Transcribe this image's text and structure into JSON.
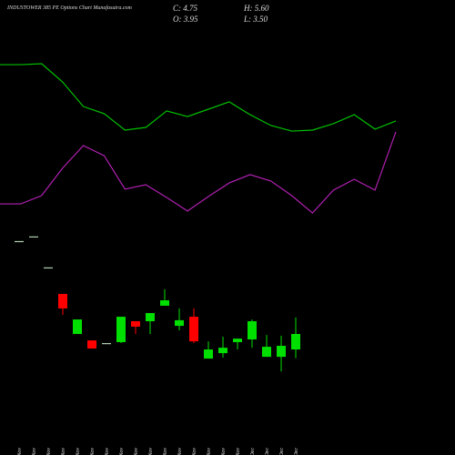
{
  "chart_data": {
    "type": "candlestick",
    "title": "INDUSTOWER 385 PE Options Chart Munafasutra.com",
    "ohlc_labels": [
      "C: 4.75",
      "H: 5.60",
      "O: 3.95",
      "L: 3.50"
    ],
    "categories": [
      "06 Nov",
      "07 Nov",
      "10 Nov",
      "12 Nov",
      "13 Nov",
      "14 Nov",
      "17 Nov",
      "18 Nov",
      "19 Nov",
      "20 Nov",
      "21 Nov",
      "24 Nov",
      "25 Nov",
      "26 Nov",
      "27 Nov",
      "28 Nov",
      "01 Dec",
      "02 Dec",
      "03 Dec",
      "04 Dec"
    ],
    "open": [
      9.55,
      9.79,
      8.19,
      6.82,
      4.75,
      4.42,
      4.28,
      4.33,
      5.41,
      5.41,
      6.21,
      5.17,
      5.64,
      3.48,
      3.76,
      4.33,
      4.47,
      3.57,
      3.57,
      3.95
    ],
    "high": [
      9.55,
      9.79,
      8.19,
      6.82,
      5.5,
      4.42,
      4.28,
      5.64,
      5.41,
      5.83,
      7.06,
      6.07,
      6.07,
      4.37,
      4.61,
      4.51,
      5.5,
      4.7,
      4.66,
      5.6
    ],
    "low": [
      9.55,
      9.79,
      8.19,
      5.74,
      4.75,
      4.0,
      4.28,
      4.28,
      4.75,
      4.75,
      6.21,
      4.94,
      4.28,
      3.48,
      3.53,
      3.95,
      4.04,
      3.57,
      2.82,
      3.5
    ],
    "close": [
      9.55,
      9.79,
      8.19,
      6.07,
      5.5,
      4.0,
      4.28,
      5.64,
      5.13,
      5.83,
      6.49,
      5.46,
      4.37,
      3.95,
      4.04,
      4.51,
      5.41,
      4.09,
      4.14,
      4.75
    ],
    "up_color": "#00e000",
    "down_color": "#ff0000",
    "flat_color": "#b0d0b0",
    "lines": [
      {
        "color": "#00c000",
        "values": [
          18.66,
          18.66,
          18.71,
          17.77,
          16.5,
          16.13,
          15.28,
          15.42,
          16.27,
          15.98,
          16.36,
          16.74,
          16.08,
          15.52,
          15.23,
          15.28,
          15.61,
          16.08,
          15.33,
          15.75
        ]
      },
      {
        "color": "#b020b0",
        "values": [
          11.47,
          11.47,
          11.9,
          13.31,
          14.48,
          13.96,
          12.23,
          12.46,
          11.8,
          11.1,
          11.85,
          12.55,
          12.98,
          12.65,
          11.9,
          11.0,
          12.18,
          12.74,
          12.18,
          15.19
        ]
      }
    ],
    "ylim": [
      -1.5,
      22
    ]
  }
}
